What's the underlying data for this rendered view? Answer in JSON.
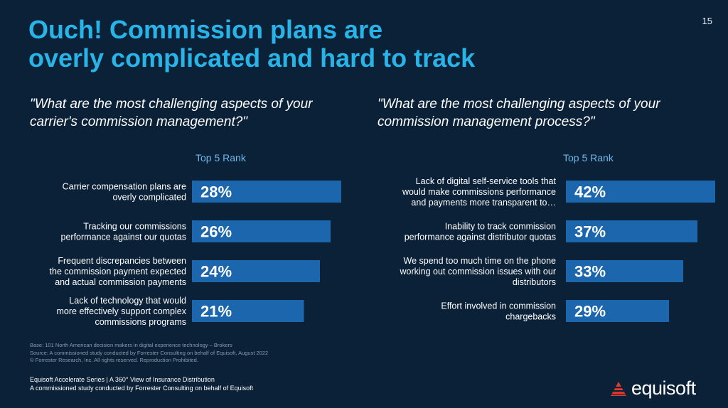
{
  "page_number": "15",
  "title": {
    "line1": "Ouch! Commission plans are",
    "line2": "overly complicated and hard to track"
  },
  "colors": {
    "background": "#0b2138",
    "title": "#29b4e8",
    "bar": "#1b66ad",
    "rank_label": "#6fb6e4"
  },
  "chart_data": [
    {
      "type": "bar",
      "orientation": "horizontal",
      "title": "\"What are the most challenging aspects of your carrier's commission management?\"",
      "title_lines": [
        "\"What are the most challenging aspects of your",
        "carrier's commission management?\""
      ],
      "column_label": "Top 5 Rank",
      "unit": "%",
      "categories": [
        [
          "Carrier compensation plans are",
          "overly complicated"
        ],
        [
          "Tracking our commissions",
          "performance against our quotas"
        ],
        [
          "Frequent discrepancies between",
          "the commission payment expected",
          "and actual commission payments"
        ],
        [
          "Lack of technology that would",
          "more effectively support complex",
          "commissions programs"
        ]
      ],
      "values": [
        28,
        26,
        24,
        21
      ]
    },
    {
      "type": "bar",
      "orientation": "horizontal",
      "title": "\"What are the most challenging aspects of your commission management process?\"",
      "title_lines": [
        "\"What are the most challenging aspects of your",
        "commission management process?\""
      ],
      "column_label": "Top 5 Rank",
      "unit": "%",
      "categories": [
        [
          "Lack of digital self-service tools that",
          "would make commissions performance",
          "and payments more transparent to…"
        ],
        [
          "Inability to track commission",
          "performance against distributor quotas"
        ],
        [
          "We spend too much time on the phone",
          "working out commission issues with our",
          "distributors"
        ],
        [
          "Effort involved in commission",
          "chargebacks"
        ]
      ],
      "values": [
        42,
        37,
        33,
        29
      ]
    }
  ],
  "footnote": {
    "base": "Base: 101 North American decision makers in digital experience technology – Brokers",
    "source": "Source: A commissioned study conducted by Forrester Consulting on behalf of Equisoft, August 2022",
    "copyright": "© Forrester Research, Inc. All rights reserved. Reproduction Prohibited."
  },
  "series_footer": {
    "line1": "Equisoft Accelerate Series | A 360° View of Insurance Distribution",
    "line2": "A commissioned study conducted by Forrester Consulting on behalf of Equisoft"
  },
  "logo": {
    "text": "equisoft",
    "icon": "equisoft-logo-icon"
  }
}
